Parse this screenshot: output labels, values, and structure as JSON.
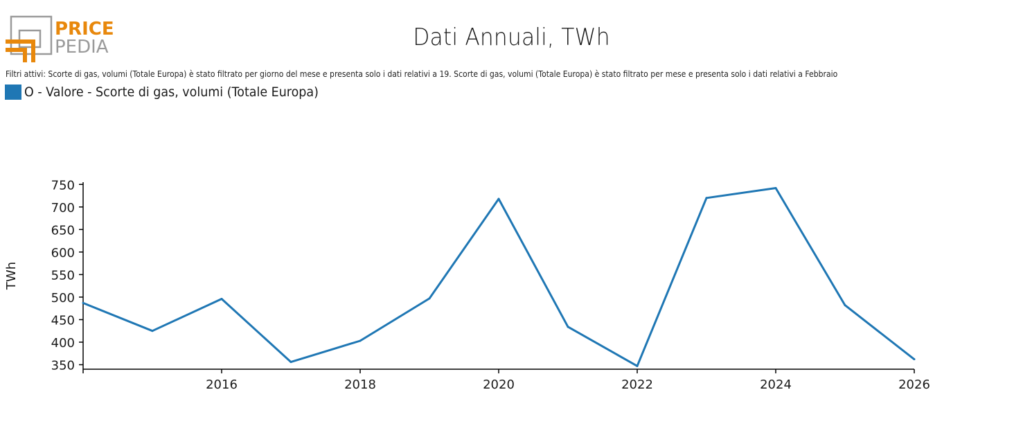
{
  "logo": {
    "text_top": "PRICE",
    "text_bottom": "PEDIA",
    "color_orange": "#e8880c",
    "color_gray": "#9a9a9a"
  },
  "header": {
    "title": "Dati Annuali, TWh",
    "filters": "Filtri attivi: Scorte di gas, volumi (Totale Europa) è stato filtrato per giorno del mese e presenta solo i dati relativi a 19. Scorte di gas, volumi (Totale Europa) è stato filtrato per mese e presenta solo i dati relativi a Febbraio"
  },
  "legend": {
    "label": "O - Valore - Scorte di gas, volumi (Totale Europa)",
    "color": "#1f77b4"
  },
  "chart_data": {
    "type": "line",
    "title": "Dati Annuali, TWh",
    "xlabel": "",
    "ylabel": "TWh",
    "xlim": [
      2014,
      2026
    ],
    "ylim": [
      340,
      755
    ],
    "x_ticks": [
      2016,
      2018,
      2020,
      2022,
      2024,
      2026
    ],
    "y_ticks": [
      350,
      400,
      450,
      500,
      550,
      600,
      650,
      700,
      750
    ],
    "grid": false,
    "legend_position": "top-left",
    "series": [
      {
        "name": "O - Valore - Scorte di gas, volumi (Totale Europa)",
        "color": "#1f77b4",
        "x": [
          2014,
          2015,
          2016,
          2017,
          2018,
          2019,
          2020,
          2021,
          2022,
          2023,
          2024,
          2025,
          2026
        ],
        "values": [
          487,
          425,
          496,
          356,
          403,
          497,
          718,
          434,
          347,
          720,
          742,
          482,
          362
        ]
      }
    ]
  }
}
